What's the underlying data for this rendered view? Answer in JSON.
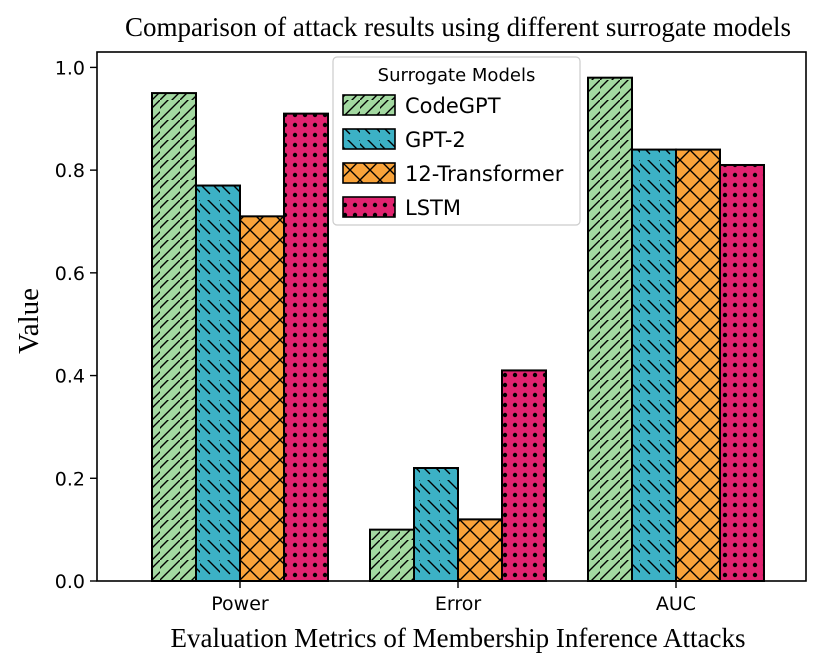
{
  "chart_data": {
    "type": "bar",
    "title": "Comparison of attack results using different surrogate models",
    "xlabel": "Evaluation Metrics of Membership Inference Attacks",
    "ylabel": "Value",
    "categories": [
      "Power",
      "Error",
      "AUC"
    ],
    "ylim": [
      0,
      1.03
    ],
    "yticks": [
      "0.0",
      "0.2",
      "0.4",
      "0.6",
      "0.8",
      "1.0"
    ],
    "grid": false,
    "legend": {
      "title": "Surrogate Models",
      "placement": "top-center"
    },
    "series": [
      {
        "name": "CodeGPT",
        "values": [
          0.95,
          0.1,
          0.98
        ],
        "color": "#a3d9a1",
        "hatch": "forward-diagonal"
      },
      {
        "name": "GPT-2",
        "values": [
          0.77,
          0.22,
          0.84
        ],
        "color": "#3cb1c5",
        "hatch": "backward-diagonal"
      },
      {
        "name": "12-Transformer",
        "values": [
          0.71,
          0.12,
          0.84
        ],
        "color": "#f9a33a",
        "hatch": "crosshatch"
      },
      {
        "name": "LSTM",
        "values": [
          0.91,
          0.41,
          0.81
        ],
        "color": "#e0236f",
        "hatch": "dots"
      }
    ]
  }
}
